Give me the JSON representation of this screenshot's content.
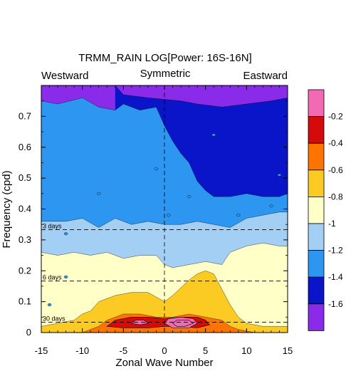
{
  "chart_data": {
    "type": "heatmap",
    "title": "TRMM_RAIN LOG[Power: 16S-16N]",
    "left_label": "Westward",
    "center_label": "Symmetric",
    "right_label": "Eastward",
    "xlabel": "Zonal Wave Number",
    "ylabel": "Frequency (cpd)",
    "xlim": [
      -15,
      15
    ],
    "ylim": [
      0,
      0.8
    ],
    "xticks": [
      -15,
      -10,
      -5,
      0,
      5,
      10,
      15
    ],
    "yticks": [
      0,
      0.1,
      0.2,
      0.3,
      0.4,
      0.5,
      0.6,
      0.7
    ],
    "period_lines": [
      {
        "label": "3 days",
        "freq": 0.3333
      },
      {
        "label": "6 days",
        "freq": 0.1667
      },
      {
        "label": "30 days",
        "freq": 0.0333
      }
    ],
    "colorbar": {
      "labels": [
        "-0.2",
        "-0.4",
        "-0.6",
        "-0.8",
        "-1",
        "-1.2",
        "-1.4",
        "-1.6"
      ],
      "colors": [
        "#f26bb2",
        "#d50a0a",
        "#ff7400",
        "#fbcb24",
        "#ffffc8",
        "#a3cff5",
        "#2c96f0",
        "#0a14c8",
        "#8b2bea"
      ]
    },
    "contour_levels": [
      -1.6,
      -1.4,
      -1.2,
      -1,
      -0.8,
      -0.6,
      -0.4,
      -0.2
    ],
    "bands": [
      {
        "level": -1.6,
        "top": [
          [
            -15,
            0.8
          ],
          [
            15,
            0.8
          ]
        ],
        "bottom": [
          [
            -6,
            0.8
          ],
          [
            -5,
            0.77
          ],
          [
            -2,
            0.76
          ],
          [
            2,
            0.75
          ],
          [
            4,
            0.74
          ],
          [
            7,
            0.73
          ],
          [
            10,
            0.74
          ],
          [
            13,
            0.75
          ],
          [
            15,
            0.76
          ]
        ]
      },
      {
        "level": -1.4,
        "top": [
          [
            -15,
            0.8
          ],
          [
            15,
            0.8
          ]
        ],
        "bottom": [
          [
            -15,
            0.75
          ],
          [
            -13,
            0.74
          ],
          [
            -10,
            0.76
          ],
          [
            -8,
            0.73
          ],
          [
            -6,
            0.72
          ],
          [
            -5,
            0.74
          ],
          [
            -3,
            0.72
          ],
          [
            -1,
            0.73
          ],
          [
            0,
            0.67
          ],
          [
            1,
            0.62
          ],
          [
            2,
            0.58
          ],
          [
            3,
            0.55
          ],
          [
            4,
            0.49
          ],
          [
            5,
            0.46
          ],
          [
            6,
            0.44
          ],
          [
            8,
            0.44
          ],
          [
            10,
            0.45
          ],
          [
            12,
            0.44
          ],
          [
            14,
            0.44
          ],
          [
            15,
            0.45
          ]
        ]
      },
      {
        "level": -1.2,
        "top": [
          [
            -15,
            0.8
          ],
          [
            15,
            0.8
          ]
        ],
        "bottom": [
          [
            -15,
            0.36
          ],
          [
            -12,
            0.36
          ],
          [
            -10,
            0.37
          ],
          [
            -8,
            0.34
          ],
          [
            -6,
            0.37
          ],
          [
            -4,
            0.35
          ],
          [
            -2,
            0.36
          ],
          [
            0,
            0.35
          ],
          [
            2,
            0.35
          ],
          [
            4,
            0.36
          ],
          [
            6,
            0.35
          ],
          [
            8,
            0.34
          ],
          [
            10,
            0.37
          ],
          [
            12,
            0.38
          ],
          [
            14,
            0.39
          ],
          [
            15,
            0.39
          ]
        ]
      },
      {
        "level": -1,
        "top": [
          [
            -15,
            0.8
          ],
          [
            15,
            0.8
          ]
        ],
        "bottom": [
          [
            -15,
            0.26
          ],
          [
            -13,
            0.25
          ],
          [
            -11,
            0.26
          ],
          [
            -9,
            0.25
          ],
          [
            -7,
            0.26
          ],
          [
            -5,
            0.24
          ],
          [
            -3,
            0.25
          ],
          [
            -1,
            0.25
          ],
          [
            0,
            0.22
          ],
          [
            1,
            0.21
          ],
          [
            3,
            0.22
          ],
          [
            5,
            0.23
          ],
          [
            7,
            0.22
          ],
          [
            8,
            0.26
          ],
          [
            10,
            0.28
          ],
          [
            12,
            0.29
          ],
          [
            14,
            0.28
          ],
          [
            15,
            0.28
          ]
        ]
      },
      {
        "level": -0.8,
        "top": [
          [
            -15,
            0.8
          ],
          [
            15,
            0.8
          ]
        ],
        "bottom": [
          [
            -15,
            0.02
          ],
          [
            -13,
            0.03
          ],
          [
            -11,
            0.04
          ],
          [
            -10,
            0.06
          ],
          [
            -9,
            0.07
          ],
          [
            -8,
            0.1
          ],
          [
            -7,
            0.11
          ],
          [
            -6,
            0.12
          ],
          [
            -4,
            0.13
          ],
          [
            -2,
            0.13
          ],
          [
            0,
            0.1
          ],
          [
            1,
            0.12
          ],
          [
            3,
            0.17
          ],
          [
            4,
            0.19
          ],
          [
            5,
            0.2
          ],
          [
            6,
            0.19
          ],
          [
            7,
            0.14
          ],
          [
            8,
            0.09
          ],
          [
            9,
            0.05
          ],
          [
            10,
            0.03
          ],
          [
            12,
            0.02
          ],
          [
            15,
            0.02
          ]
        ]
      },
      {
        "level": -0.6,
        "top": [
          [
            -15,
            0.8
          ],
          [
            15,
            0.8
          ]
        ],
        "bottom": [
          [
            -15,
            0.0
          ],
          [
            -10,
            0.0
          ],
          [
            -8,
            0.02
          ],
          [
            -7,
            0.04
          ],
          [
            -6,
            0.05
          ],
          [
            -5,
            0.06
          ],
          [
            -3,
            0.06
          ],
          [
            -1,
            0.05
          ],
          [
            1,
            0.05
          ],
          [
            3,
            0.06
          ],
          [
            5,
            0.05
          ],
          [
            7,
            0.04
          ],
          [
            8,
            0.02
          ],
          [
            9,
            0.01
          ],
          [
            11,
            0.0
          ],
          [
            15,
            0.0
          ]
        ]
      },
      {
        "level": -0.4,
        "top": [
          [
            -15,
            0.8
          ],
          [
            15,
            0.8
          ]
        ],
        "bottom": [
          [
            -15,
            0.0
          ],
          [
            15,
            0.0
          ]
        ]
      }
    ],
    "islands": [
      {
        "level": -0.4,
        "points": [
          [
            -7,
            0.02
          ],
          [
            -6,
            0.04
          ],
          [
            -4,
            0.05
          ],
          [
            -2,
            0.05
          ],
          [
            0,
            0.045
          ],
          [
            2,
            0.05
          ],
          [
            4,
            0.05
          ],
          [
            5,
            0.04
          ],
          [
            5.5,
            0.025
          ],
          [
            4,
            0.015
          ],
          [
            2,
            0.02
          ],
          [
            0,
            0.02
          ],
          [
            -2,
            0.015
          ],
          [
            -5,
            0.015
          ]
        ]
      },
      {
        "level": -0.2,
        "points": [
          [
            -4,
            0.03
          ],
          [
            -3.5,
            0.04
          ],
          [
            -2.5,
            0.04
          ],
          [
            -2,
            0.03
          ],
          [
            -3,
            0.025
          ]
        ]
      },
      {
        "level": -0.2,
        "points": [
          [
            0,
            0.03
          ],
          [
            0.5,
            0.045
          ],
          [
            2,
            0.05
          ],
          [
            3.5,
            0.045
          ],
          [
            4,
            0.03
          ],
          [
            3,
            0.015
          ],
          [
            1,
            0.015
          ]
        ]
      },
      {
        "level": 0,
        "points": [
          [
            1,
            0.03
          ],
          [
            1.5,
            0.04
          ],
          [
            3,
            0.04
          ],
          [
            3.5,
            0.03
          ],
          [
            2.5,
            0.02
          ],
          [
            1.5,
            0.02
          ]
        ]
      }
    ]
  }
}
